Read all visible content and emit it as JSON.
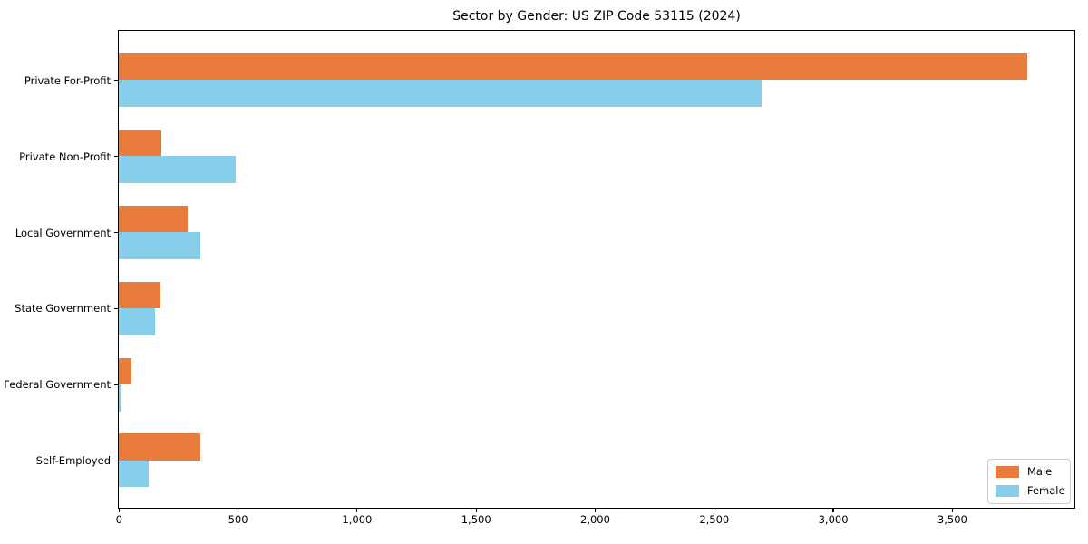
{
  "chart_data": {
    "type": "bar",
    "orientation": "horizontal",
    "title": "Sector by Gender: US ZIP Code 53115 (2024)",
    "categories": [
      "Private For-Profit",
      "Private Non-Profit",
      "Local Government",
      "State Government",
      "Federal Government",
      "Self-Employed"
    ],
    "series": [
      {
        "name": "Male",
        "color": "#e97c3c",
        "values": [
          3815,
          178,
          288,
          175,
          52,
          343
        ]
      },
      {
        "name": "Female",
        "color": "#87ceeb",
        "values": [
          2700,
          490,
          342,
          152,
          10,
          125
        ]
      }
    ],
    "xlabel": "",
    "ylabel": "",
    "xlim": [
      0,
      4010
    ],
    "xticks": [
      0,
      500,
      1000,
      1500,
      2000,
      2500,
      3000,
      3500
    ],
    "xtick_labels": [
      "0",
      "500",
      "1,000",
      "1,500",
      "2,000",
      "2,500",
      "3,000",
      "3,500"
    ],
    "grid": false,
    "legend": {
      "position": "lower right",
      "entries": [
        {
          "label": "Male",
          "color": "#e97c3c"
        },
        {
          "label": "Female",
          "color": "#87ceeb"
        }
      ]
    },
    "frame_color": "#000000",
    "background_color": "#ffffff"
  }
}
